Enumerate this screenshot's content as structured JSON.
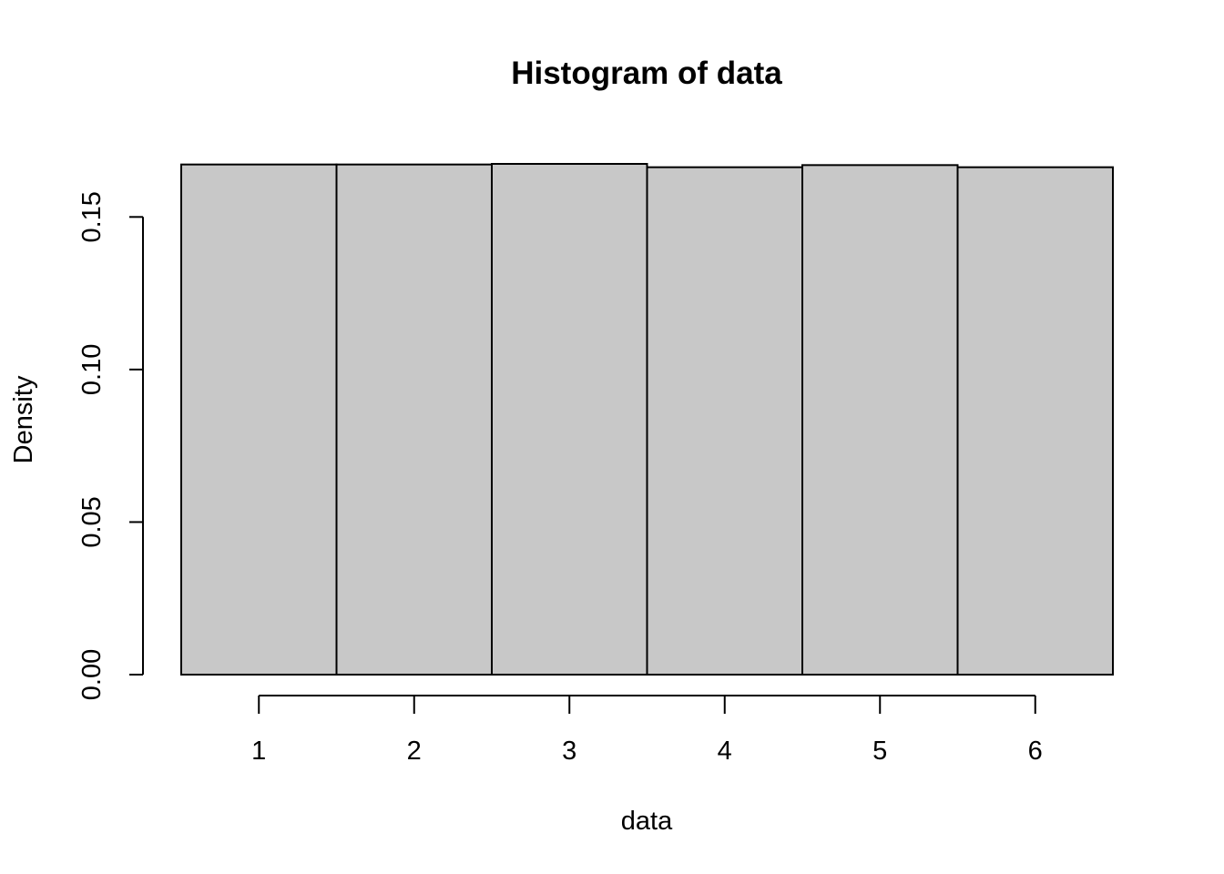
{
  "chart_data": {
    "type": "bar",
    "title": "Histogram of data",
    "xlabel": "data",
    "ylabel": "Density",
    "x_ticks": [
      1,
      2,
      3,
      4,
      5,
      6
    ],
    "x_tick_labels": [
      "1",
      "2",
      "3",
      "4",
      "5",
      "6"
    ],
    "y_ticks": [
      0.0,
      0.05,
      0.1,
      0.15
    ],
    "y_tick_labels": [
      "0.00",
      "0.05",
      "0.10",
      "0.15"
    ],
    "bins": [
      {
        "start": 0.5,
        "end": 1.5,
        "density": 0.1672
      },
      {
        "start": 1.5,
        "end": 2.5,
        "density": 0.1672
      },
      {
        "start": 2.5,
        "end": 3.5,
        "density": 0.1674
      },
      {
        "start": 3.5,
        "end": 4.5,
        "density": 0.1663
      },
      {
        "start": 4.5,
        "end": 5.5,
        "density": 0.167
      },
      {
        "start": 5.5,
        "end": 6.5,
        "density": 0.1663
      }
    ],
    "xlim": [
      0.5,
      6.5
    ],
    "ylim": [
      0,
      0.1674
    ],
    "bar_fill": "#c8c8c8",
    "bar_stroke": "#000000",
    "grid": false,
    "legend": "none"
  }
}
